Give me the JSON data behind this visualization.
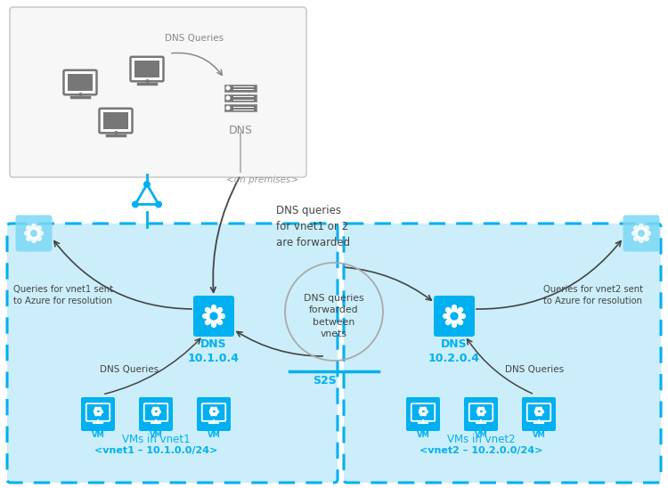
{
  "bg_color": "#ffffff",
  "light_blue": "#00b0f0",
  "light_blue_box": "#d9f2fc",
  "gray_box_bg": "#f5f5f5",
  "gray_box_border": "#cccccc",
  "dark_gray": "#555555",
  "arrow_color": "#555555",
  "texts": {
    "dns_queries_top": "DNS Queries",
    "on_premises": "<on premises>",
    "dns_fwd": "DNS queries\nfor vnet1 or 2\nare forwarded",
    "dns_fwd_between": "DNS queries\nforwarded\nbetween\nvnets",
    "s2s": "S2S",
    "dns_label1": "DNS\n10.1.0.4",
    "dns_label2": "DNS\n10.2.0.4",
    "dns_server_top": "DNS",
    "vms_vnet1": "VMs in vnet1",
    "vms_vnet2": "VMs in vnet2",
    "vnet1_label": "<vnet1 – 10.1.0.0/24>",
    "vnet2_label": "<vnet2 – 10.2.0.0/24>",
    "queries_vnet1": "Queries for vnet1 sent\nto Azure for resolution",
    "queries_vnet2": "Queries for vnet2 sent\nto Azure for resolution",
    "dns_queries_left": "DNS Queries",
    "dns_queries_right": "DNS Queries"
  },
  "colors": {
    "lb": "#00b0f0",
    "lbb": "#cceefa",
    "dg": "#444444",
    "mg": "#888888",
    "gray_icon": "#777777",
    "white": "#ffffff"
  }
}
